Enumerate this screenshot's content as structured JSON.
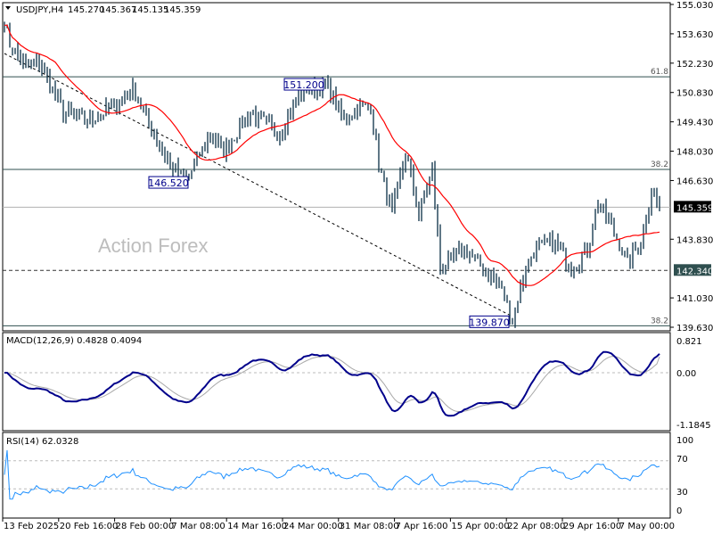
{
  "header": {
    "symbol": "USDJPY,H4",
    "open": "145.270",
    "high": "145.367",
    "low": "145.135",
    "close": "145.359"
  },
  "watermark": "Action Forex",
  "colors": {
    "bars": "#1b3d52",
    "ma": "#ff0000",
    "macd": "#00008b",
    "signal": "#a9a9a9",
    "rsi": "#1e90ff",
    "fib": "#2f4f4f",
    "current_tag": "#000000",
    "level_tag": "#2f4f4f"
  },
  "chart_data": [
    {
      "type": "ohlc",
      "title": "USDJPY,H4",
      "ylim": [
        139.63,
        155.03
      ],
      "y_ticks": [
        "155.030",
        "153.630",
        "152.230",
        "150.830",
        "149.430",
        "148.030",
        "146.630",
        "143.830",
        "141.030",
        "139.630"
      ],
      "x_ticks": [
        "13 Feb 2025",
        "20 Feb 16:00",
        "28 Feb 00:00",
        "7 Mar 08:00",
        "14 Mar 16:00",
        "24 Mar 00:00",
        "31 Mar 08:00",
        "7 Apr 16:00",
        "15 Apr 00:00",
        "22 Apr 08:00",
        "29 Apr 16:00",
        "7 May 00:00"
      ],
      "close_path_keypoints": [
        [
          0,
          154.39
        ],
        [
          2,
          153.12
        ],
        [
          8,
          152.05
        ],
        [
          13,
          152.26
        ],
        [
          22,
          149.93
        ],
        [
          32,
          149.5
        ],
        [
          40,
          150.14
        ],
        [
          48,
          150.99
        ],
        [
          53,
          149.71
        ],
        [
          62,
          147.37
        ],
        [
          68,
          146.6
        ],
        [
          77,
          148.86
        ],
        [
          82,
          148.01
        ],
        [
          92,
          149.93
        ],
        [
          98,
          149.29
        ],
        [
          103,
          148.86
        ],
        [
          110,
          150.78
        ],
        [
          113,
          150.99
        ],
        [
          121,
          151.1
        ],
        [
          127,
          149.5
        ],
        [
          132,
          150.14
        ],
        [
          137,
          150.14
        ],
        [
          140,
          147.37
        ],
        [
          145,
          145.03
        ],
        [
          150,
          148.01
        ],
        [
          155,
          145.03
        ],
        [
          160,
          147.16
        ],
        [
          163,
          142.48
        ],
        [
          172,
          143.33
        ],
        [
          180,
          142.3
        ],
        [
          185,
          141.63
        ],
        [
          190,
          140.0
        ],
        [
          195,
          142.48
        ],
        [
          198,
          143.33
        ],
        [
          205,
          143.76
        ],
        [
          212,
          142.48
        ],
        [
          218,
          143.33
        ],
        [
          222,
          145.67
        ],
        [
          228,
          144.18
        ],
        [
          233,
          142.69
        ],
        [
          238,
          143.76
        ],
        [
          242,
          146.09
        ],
        [
          245,
          145.36
        ]
      ],
      "ma_period": 20,
      "annotations": [
        {
          "label": "151.200",
          "price": 151.2
        },
        {
          "label": "146.520",
          "price": 146.52
        },
        {
          "label": "139.870",
          "price": 139.87
        }
      ],
      "fib_levels": [
        {
          "label": "61.8",
          "price": 151.58
        },
        {
          "label": "38.2",
          "price": 147.16
        },
        {
          "label": "38.2",
          "price": 139.7
        }
      ],
      "support_level": {
        "label": "142.340",
        "price": 142.34
      },
      "current_price": {
        "label": "145.359",
        "price": 145.359
      },
      "trendline": {
        "from": [
          0,
          152.69
        ],
        "to": [
          190,
          140.14
        ]
      }
    },
    {
      "type": "line",
      "title": "MACD(12,26,9) 0.4828 0.4094",
      "params": [
        12,
        26,
        9
      ],
      "value": 0.4828,
      "signal": 0.4094,
      "ylim": [
        -1.1845,
        0.821
      ],
      "y_ticks": [
        "0.821",
        "0.00",
        "-1.1845"
      ]
    },
    {
      "type": "line",
      "title": "RSI(14) 62.0328",
      "period": 14,
      "value": 62.0328,
      "ylim": [
        0,
        100
      ],
      "y_ticks": [
        "100",
        "70",
        "30",
        "0"
      ]
    }
  ]
}
